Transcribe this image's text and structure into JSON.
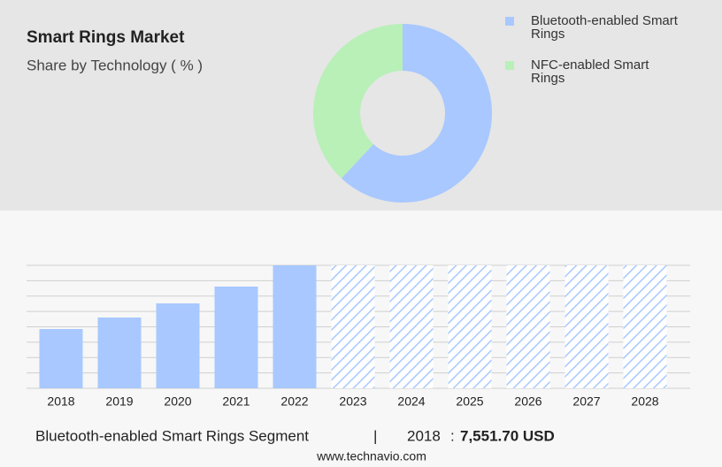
{
  "chart_data": [
    {
      "type": "pie",
      "title": "Smart Rings Market",
      "subtitle": "Share by Technology ( % )",
      "categories": [
        "Bluetooth-enabled Smart Rings",
        "NFC-enabled Smart Rings"
      ],
      "values": [
        62,
        38
      ],
      "colors": [
        "#a8c8ff",
        "#b8f0b8"
      ]
    },
    {
      "type": "bar",
      "categories": [
        "2018",
        "2019",
        "2020",
        "2021",
        "2022",
        "2023",
        "2024",
        "2025",
        "2026",
        "2027",
        "2028"
      ],
      "values": [
        7551.7,
        9017,
        10820,
        12962,
        15667,
        null,
        null,
        null,
        null,
        null,
        null
      ],
      "color": "#a8c8ff",
      "ylim": [
        0,
        15667
      ],
      "grid": true
    }
  ],
  "footer": {
    "segment": "Bluetooth-enabled Smart Rings Segment",
    "year": "2018",
    "separator": ":",
    "value": "7,551.70 USD",
    "source": "www.technavio.com"
  }
}
